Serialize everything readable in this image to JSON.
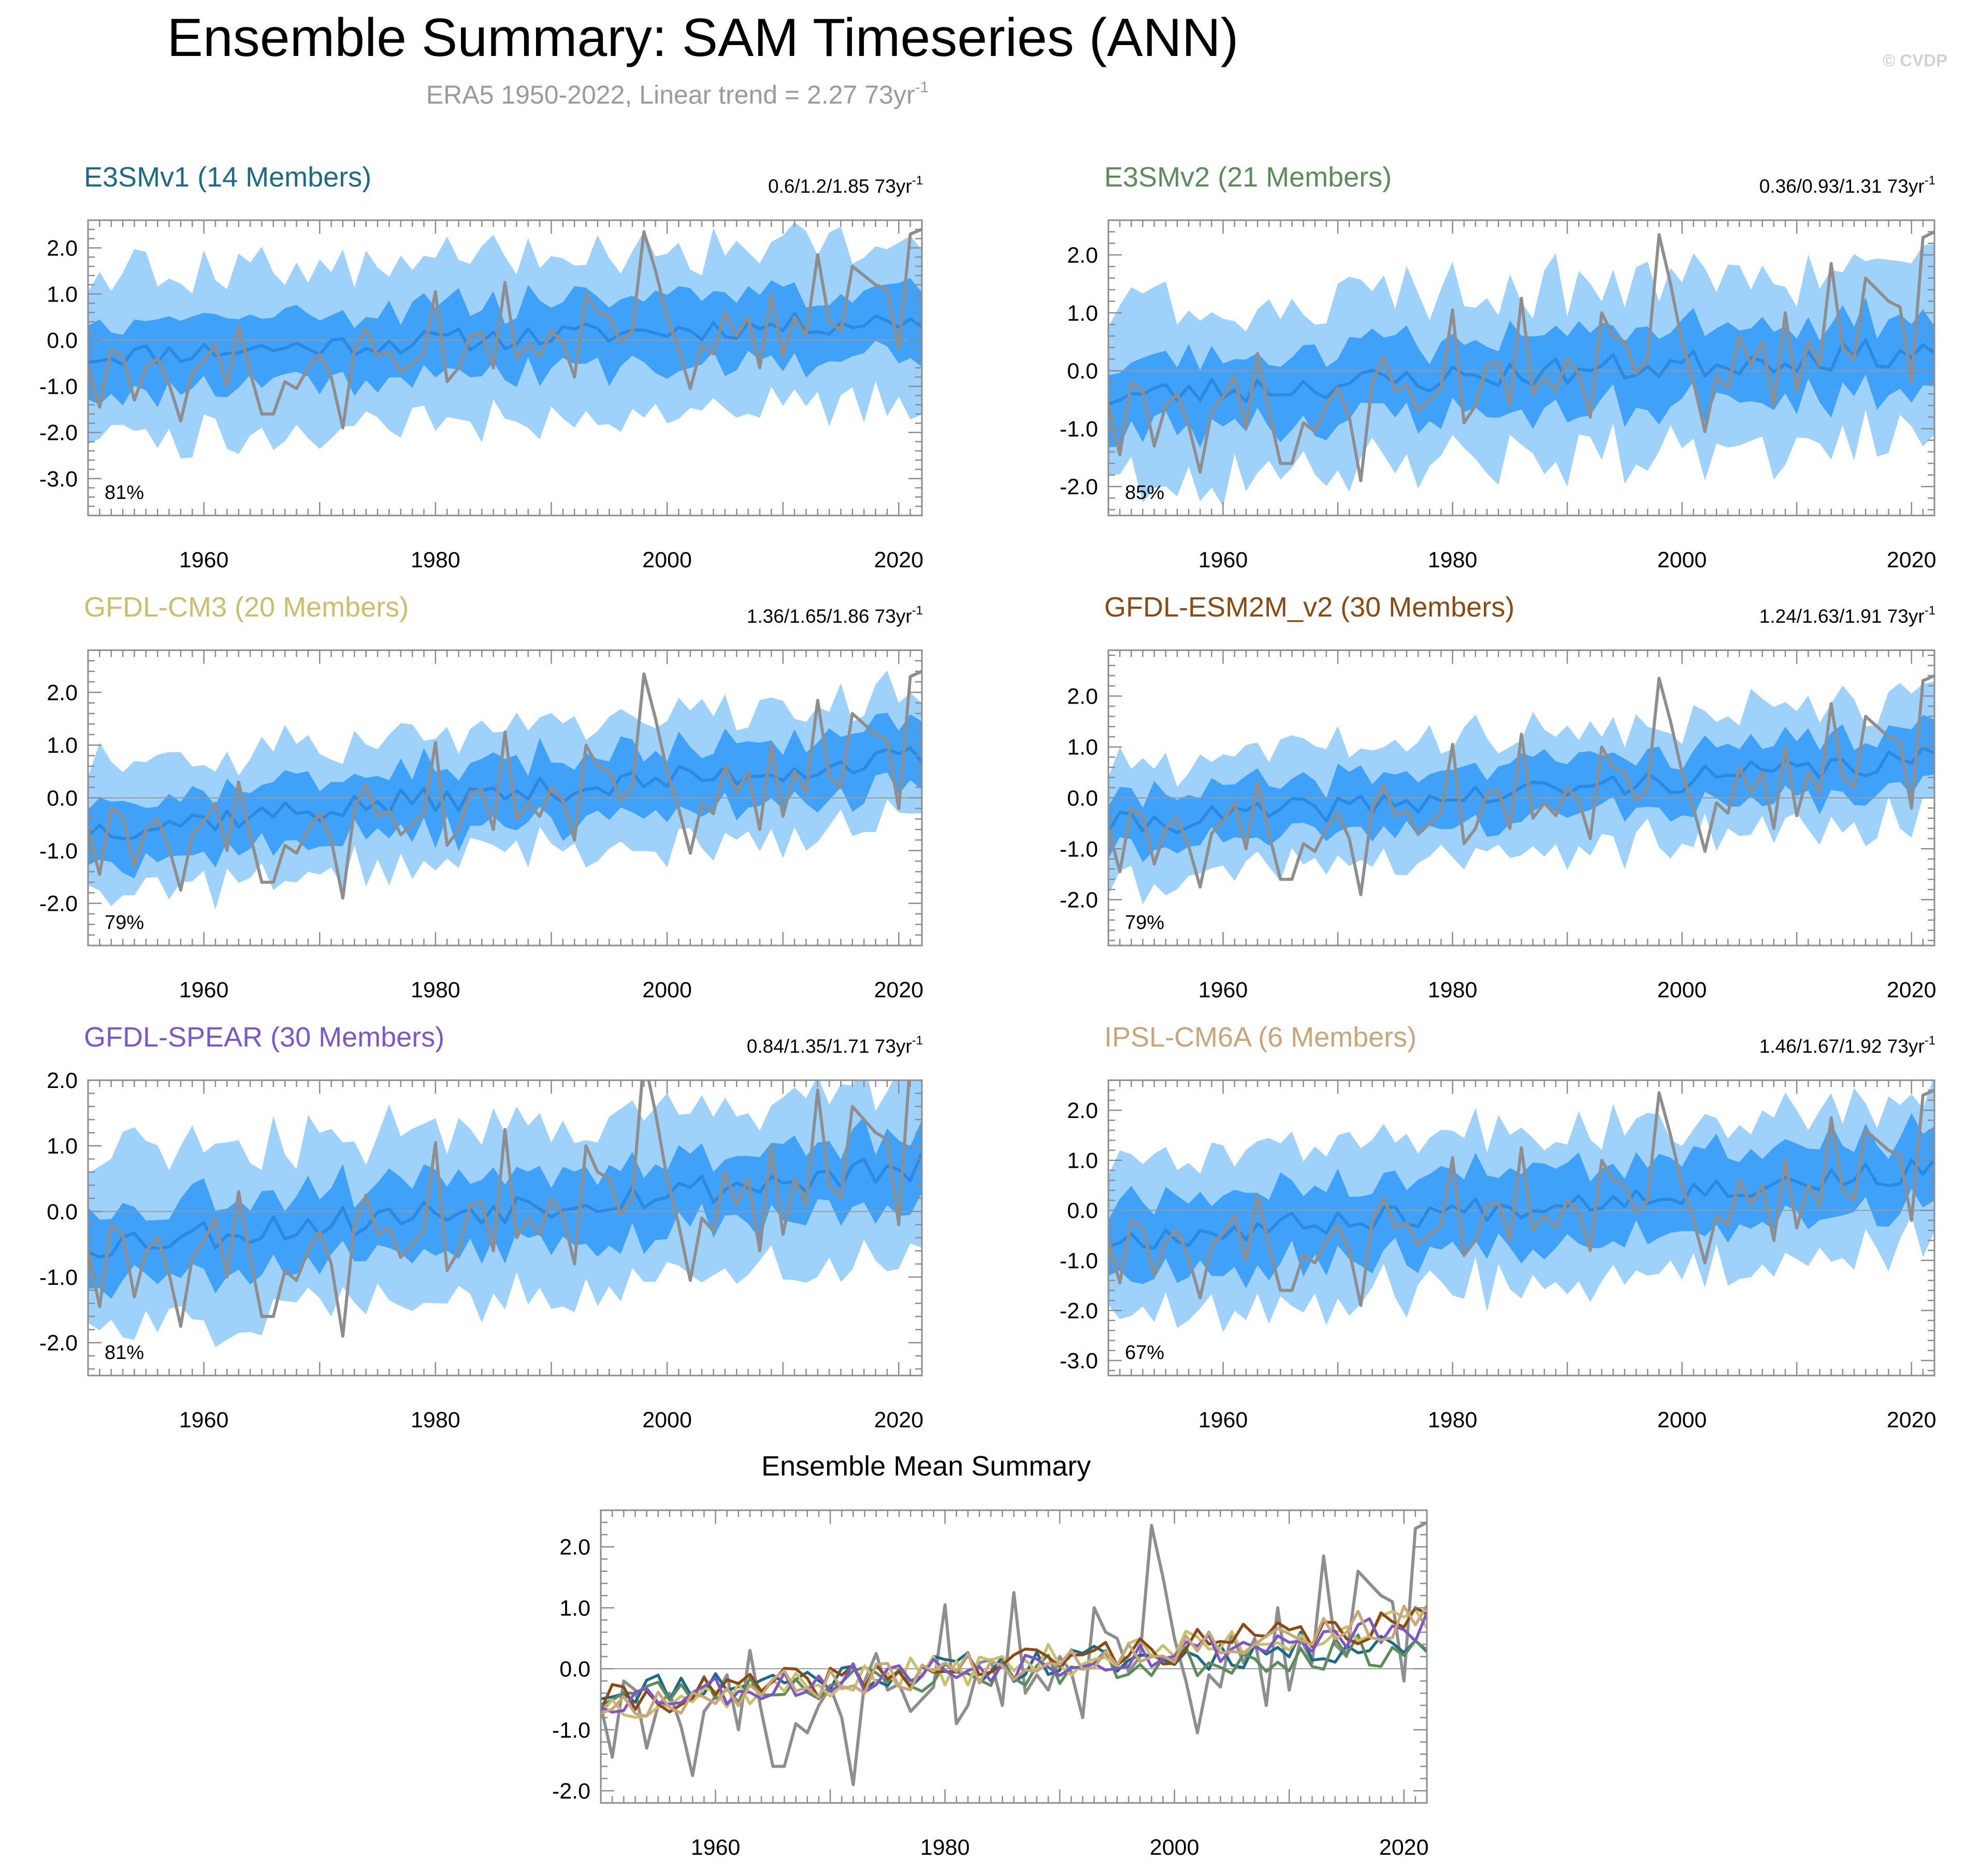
{
  "figure": {
    "title": "Ensemble Summary: SAM Timeseries (ANN)",
    "subtitle_main": "ERA5 1950-2022, Linear trend = 2.27 73yr",
    "subtitle_sup": "-1",
    "copyright": "© CVDP",
    "colors": {
      "band_outer": "#9fd2fb",
      "band_inner": "#3fa2f8",
      "ens_mean": "#2c89e1",
      "obs": "#8e8e8e",
      "zero_line": "#9a9a9a"
    }
  },
  "chart_data": [
    {
      "type": "line",
      "id": "e3smv1",
      "title": "E3SMv1 (14 Members)",
      "title_color": "#1b6a86",
      "trend_text": "0.6/1.2/1.85 73yr",
      "trend_sup": "-1",
      "pct_text": "81%",
      "xlim": [
        1950,
        2022
      ],
      "ylim": [
        -3.8,
        2.6
      ],
      "yticks": [
        2.0,
        1.0,
        0.0,
        -1.0,
        -2.0,
        -3.0
      ],
      "ytick_labels": [
        "2.0",
        "1.0",
        "0.0",
        "-1.0",
        "-2.0",
        "-3.0"
      ],
      "xticks": [
        1960,
        1980,
        2000,
        2020
      ],
      "xtick_labels": [
        "1960",
        "1980",
        "2000",
        "2020"
      ],
      "ens_mean_start": -0.35,
      "ens_mean_end": 0.45,
      "inner_halfwidth": 0.75,
      "outer_halfwidth": 1.7,
      "seed": 11
    },
    {
      "type": "line",
      "id": "e3smv2",
      "title": "E3SMv2 (21 Members)",
      "title_color": "#5b8c5a",
      "trend_text": "0.36/0.93/1.31 73yr",
      "trend_sup": "-1",
      "pct_text": "85%",
      "xlim": [
        1950,
        2022
      ],
      "ylim": [
        -2.5,
        2.6
      ],
      "yticks": [
        2.0,
        1.0,
        0.0,
        -1.0,
        -2.0
      ],
      "ytick_labels": [
        "2.0",
        "1.0",
        "0.0",
        "-1.0",
        "-2.0"
      ],
      "xticks": [
        1960,
        1980,
        2000,
        2020
      ],
      "xtick_labels": [
        "1960",
        "1980",
        "2000",
        "2020"
      ],
      "ens_mean_start": -0.45,
      "ens_mean_end": 0.35,
      "inner_halfwidth": 0.65,
      "outer_halfwidth": 1.45,
      "seed": 23
    },
    {
      "type": "line",
      "id": "gfdl-cm3",
      "title": "GFDL-CM3 (20 Members)",
      "title_color": "#c9bf6d",
      "trend_text": "1.36/1.65/1.86 73yr",
      "trend_sup": "-1",
      "pct_text": "79%",
      "xlim": [
        1950,
        2022
      ],
      "ylim": [
        -2.8,
        2.8
      ],
      "yticks": [
        2.0,
        1.0,
        0.0,
        -1.0,
        -2.0
      ],
      "ytick_labels": [
        "2.0",
        "1.0",
        "0.0",
        "-1.0",
        "-2.0"
      ],
      "xticks": [
        1960,
        1980,
        2000,
        2020
      ],
      "xtick_labels": [
        "1960",
        "1980",
        "2000",
        "2020"
      ],
      "ens_mean_start": -0.6,
      "ens_mean_end": 0.75,
      "inner_halfwidth": 0.6,
      "outer_halfwidth": 1.2,
      "seed": 37
    },
    {
      "type": "line",
      "id": "gfdl-esm2m",
      "title": "GFDL-ESM2M_v2 (30 Members)",
      "title_color": "#8a4a12",
      "trend_text": "1.24/1.63/1.91 73yr",
      "trend_sup": "-1",
      "pct_text": "79%",
      "xlim": [
        1950,
        2022
      ],
      "ylim": [
        -2.9,
        2.9
      ],
      "yticks": [
        2.0,
        1.0,
        0.0,
        -1.0,
        -2.0
      ],
      "ytick_labels": [
        "2.0",
        "1.0",
        "0.0",
        "-1.0",
        "-2.0"
      ],
      "xticks": [
        1960,
        1980,
        2000,
        2020
      ],
      "xtick_labels": [
        "1960",
        "1980",
        "2000",
        "2020"
      ],
      "ens_mean_start": -0.55,
      "ens_mean_end": 0.75,
      "inner_halfwidth": 0.55,
      "outer_halfwidth": 1.15,
      "seed": 41
    },
    {
      "type": "line",
      "id": "gfdl-spear",
      "title": "GFDL-SPEAR (30 Members)",
      "title_color": "#7c57c9",
      "trend_text": "0.84/1.35/1.71 73yr",
      "trend_sup": "-1",
      "pct_text": "81%",
      "xlim": [
        1950,
        2022
      ],
      "ylim": [
        -2.5,
        2.0
      ],
      "yticks": [
        2.0,
        1.0,
        0.0,
        -1.0,
        -2.0
      ],
      "ytick_labels": [
        "2.0",
        "1.0",
        "0.0",
        "-1.0",
        "-2.0"
      ],
      "xticks": [
        1960,
        1980,
        2000,
        2020
      ],
      "xtick_labels": [
        "1960",
        "1980",
        "2000",
        "2020"
      ],
      "ens_mean_start": -0.5,
      "ens_mean_end": 0.65,
      "inner_halfwidth": 0.55,
      "outer_halfwidth": 1.25,
      "seed": 53
    },
    {
      "type": "line",
      "id": "ipsl-cm6a",
      "title": "IPSL-CM6A (6 Members)",
      "title_color": "#c8a67a",
      "trend_text": "1.46/1.67/1.92 73yr",
      "trend_sup": "-1",
      "pct_text": "67%",
      "xlim": [
        1950,
        2022
      ],
      "ylim": [
        -3.3,
        2.6
      ],
      "yticks": [
        2.0,
        1.0,
        0.0,
        -1.0,
        -2.0,
        -3.0
      ],
      "ytick_labels": [
        "2.0",
        "1.0",
        "0.0",
        "-1.0",
        "-2.0",
        "-3.0"
      ],
      "xticks": [
        1960,
        1980,
        2000,
        2020
      ],
      "xtick_labels": [
        "1960",
        "1980",
        "2000",
        "2020"
      ],
      "ens_mean_start": -0.6,
      "ens_mean_end": 0.8,
      "inner_halfwidth": 0.75,
      "outer_halfwidth": 1.45,
      "seed": 67
    },
    {
      "type": "line",
      "id": "ensemble-mean",
      "title": "Ensemble Mean Summary",
      "xlim": [
        1950,
        2022
      ],
      "ylim": [
        -2.2,
        2.6
      ],
      "yticks": [
        2.0,
        1.0,
        0.0,
        -1.0,
        -2.0
      ],
      "ytick_labels": [
        "2.0",
        "1.0",
        "0.0",
        "-1.0",
        "-2.0"
      ],
      "xticks": [
        1960,
        1980,
        2000,
        2020
      ],
      "xtick_labels": [
        "1960",
        "1980",
        "2000",
        "2020"
      ],
      "series": [
        {
          "name": "E3SMv1",
          "color": "#1b6a86",
          "start": -0.35,
          "end": 0.45,
          "seed": 11
        },
        {
          "name": "E3SMv2",
          "color": "#5b8c5a",
          "start": -0.45,
          "end": 0.35,
          "seed": 23
        },
        {
          "name": "GFDL-CM3",
          "color": "#c9bf6d",
          "start": -0.6,
          "end": 0.75,
          "seed": 37
        },
        {
          "name": "GFDL-ESM2M_v2",
          "color": "#8a4a12",
          "start": -0.55,
          "end": 0.75,
          "seed": 41
        },
        {
          "name": "GFDL-SPEAR",
          "color": "#7c57c9",
          "start": -0.5,
          "end": 0.65,
          "seed": 53
        },
        {
          "name": "IPSL-CM6A",
          "color": "#c8a67a",
          "start": -0.6,
          "end": 0.8,
          "seed": 67
        }
      ]
    }
  ],
  "observations": {
    "name": "ERA5",
    "years": [
      1950,
      1951,
      1952,
      1953,
      1954,
      1955,
      1956,
      1957,
      1958,
      1959,
      1960,
      1961,
      1962,
      1963,
      1964,
      1965,
      1966,
      1967,
      1968,
      1969,
      1970,
      1971,
      1972,
      1973,
      1974,
      1975,
      1976,
      1977,
      1978,
      1979,
      1980,
      1981,
      1982,
      1983,
      1984,
      1985,
      1986,
      1987,
      1988,
      1989,
      1990,
      1991,
      1992,
      1993,
      1994,
      1995,
      1996,
      1997,
      1998,
      1999,
      2000,
      2001,
      2002,
      2003,
      2004,
      2005,
      2006,
      2007,
      2008,
      2009,
      2010,
      2011,
      2012,
      2013,
      2014,
      2015,
      2016,
      2017,
      2018,
      2019,
      2020,
      2021,
      2022
    ],
    "values": [
      -0.6,
      -1.45,
      -0.2,
      -0.35,
      -1.3,
      -0.6,
      -0.4,
      -0.95,
      -1.75,
      -0.7,
      -0.45,
      -0.1,
      -1.0,
      0.3,
      -0.7,
      -1.6,
      -1.6,
      -0.9,
      -1.05,
      -0.6,
      -0.3,
      -0.8,
      -1.9,
      -0.2,
      0.25,
      -0.35,
      -0.25,
      -0.7,
      -0.5,
      -0.3,
      1.05,
      -0.9,
      -0.6,
      0.1,
      0.15,
      -0.6,
      1.25,
      -0.4,
      -0.1,
      -0.35,
      0.2,
      -0.05,
      -0.8,
      1.0,
      0.6,
      0.5,
      -0.05,
      0.2,
      2.35,
      1.5,
      0.5,
      -0.2,
      -1.05,
      -0.1,
      -0.3,
      0.6,
      0.1,
      0.5,
      -0.6,
      1.0,
      -0.35,
      0.5,
      0.1,
      1.85,
      0.4,
      0.2,
      1.6,
      1.4,
      1.2,
      1.1,
      -0.2,
      2.3,
      2.4
    ]
  }
}
